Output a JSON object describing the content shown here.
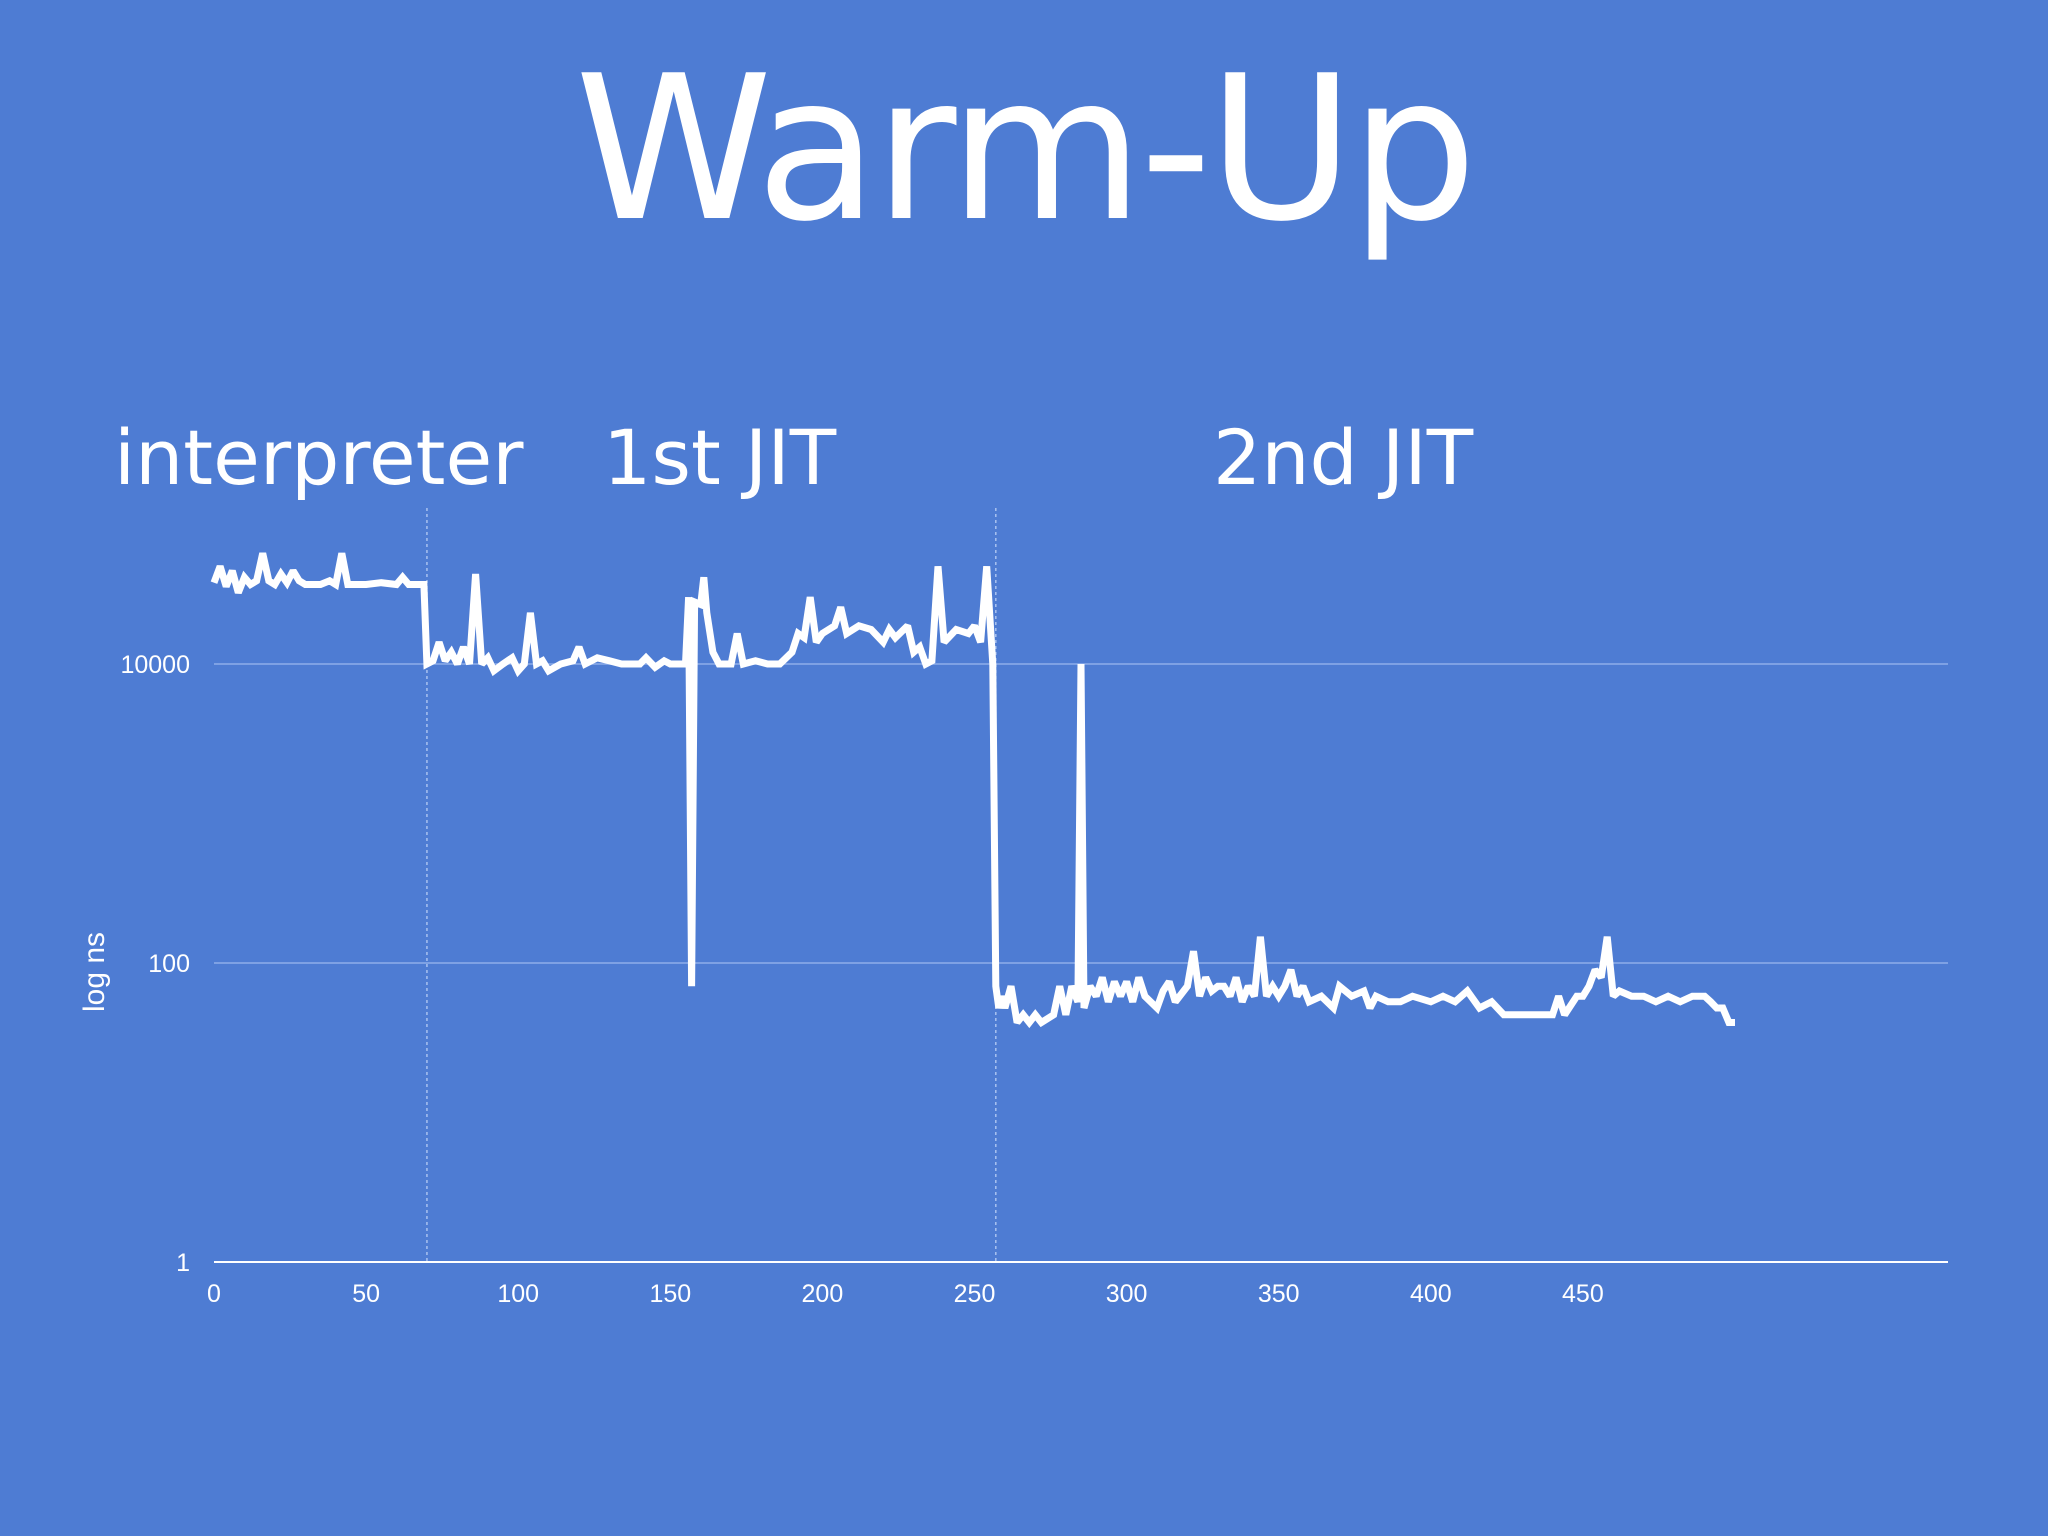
{
  "slide": {
    "title": "Warm-Up"
  },
  "colors": {
    "background": "#4e7cd3",
    "line": "#ffffff",
    "grid": "#8eadea"
  },
  "chart_data": {
    "type": "line",
    "title": "",
    "xlabel": "",
    "ylabel": "log ns",
    "yscale": "log",
    "ylim": [
      1,
      50000
    ],
    "xlim": [
      0,
      500
    ],
    "xticks": [
      0,
      50,
      100,
      150,
      200,
      250,
      300,
      350,
      400,
      450
    ],
    "yticks": [
      1,
      100,
      10000
    ],
    "grid": "horizontal",
    "phase_boundaries": [
      70,
      257
    ],
    "phases": [
      "interpreter",
      "1st JIT",
      "2nd JIT"
    ],
    "series": [
      {
        "points": [
          [
            0,
            35000
          ],
          [
            2,
            45000
          ],
          [
            4,
            33000
          ],
          [
            6,
            42000
          ],
          [
            8,
            30000
          ],
          [
            10,
            38000
          ],
          [
            12,
            34000
          ],
          [
            14,
            36000
          ],
          [
            16,
            55000
          ],
          [
            18,
            36000
          ],
          [
            20,
            34000
          ],
          [
            22,
            40000
          ],
          [
            24,
            35000
          ],
          [
            26,
            42000
          ],
          [
            28,
            36000
          ],
          [
            30,
            34000
          ],
          [
            35,
            34000
          ],
          [
            38,
            36000
          ],
          [
            40,
            34000
          ],
          [
            42,
            55000
          ],
          [
            44,
            34000
          ],
          [
            50,
            34000
          ],
          [
            55,
            35000
          ],
          [
            60,
            34000
          ],
          [
            62,
            38000
          ],
          [
            64,
            34000
          ],
          [
            68,
            34000
          ],
          [
            69,
            34000
          ],
          [
            70,
            10000
          ],
          [
            72,
            10500
          ],
          [
            74,
            14000
          ],
          [
            76,
            10500
          ],
          [
            78,
            12000
          ],
          [
            80,
            10000
          ],
          [
            82,
            13000
          ],
          [
            84,
            10000
          ],
          [
            86,
            40000
          ],
          [
            88,
            10000
          ],
          [
            90,
            11000
          ],
          [
            92,
            9000
          ],
          [
            95,
            10000
          ],
          [
            98,
            11000
          ],
          [
            100,
            9000
          ],
          [
            102,
            10000
          ],
          [
            104,
            22000
          ],
          [
            106,
            10000
          ],
          [
            108,
            10500
          ],
          [
            110,
            9000
          ],
          [
            114,
            10000
          ],
          [
            118,
            10500
          ],
          [
            120,
            13000
          ],
          [
            122,
            10000
          ],
          [
            126,
            11000
          ],
          [
            130,
            10500
          ],
          [
            134,
            10000
          ],
          [
            138,
            10000
          ],
          [
            140,
            10000
          ],
          [
            142,
            11000
          ],
          [
            145,
            9500
          ],
          [
            148,
            10500
          ],
          [
            150,
            10000
          ],
          [
            152,
            10000
          ],
          [
            155,
            10000
          ],
          [
            156,
            28000
          ],
          [
            157,
            70
          ],
          [
            158,
            26000
          ],
          [
            160,
            25000
          ],
          [
            161,
            38000
          ],
          [
            162,
            22000
          ],
          [
            164,
            12000
          ],
          [
            166,
            10000
          ],
          [
            170,
            10000
          ],
          [
            172,
            16000
          ],
          [
            174,
            10000
          ],
          [
            178,
            10500
          ],
          [
            182,
            10000
          ],
          [
            186,
            10000
          ],
          [
            190,
            12000
          ],
          [
            192,
            16000
          ],
          [
            194,
            15000
          ],
          [
            196,
            28000
          ],
          [
            198,
            14000
          ],
          [
            200,
            16000
          ],
          [
            204,
            18000
          ],
          [
            206,
            24000
          ],
          [
            208,
            16000
          ],
          [
            212,
            18000
          ],
          [
            216,
            17000
          ],
          [
            220,
            14000
          ],
          [
            222,
            17000
          ],
          [
            224,
            15000
          ],
          [
            228,
            18000
          ],
          [
            230,
            12000
          ],
          [
            232,
            13000
          ],
          [
            234,
            10000
          ],
          [
            236,
            10500
          ],
          [
            238,
            45000
          ],
          [
            240,
            14000
          ],
          [
            244,
            17000
          ],
          [
            248,
            16000
          ],
          [
            250,
            18000
          ],
          [
            252,
            14000
          ],
          [
            254,
            45000
          ],
          [
            256,
            10000
          ],
          [
            257,
            70
          ],
          [
            258,
            50
          ],
          [
            259,
            60
          ],
          [
            260,
            50
          ],
          [
            262,
            70
          ],
          [
            264,
            40
          ],
          [
            266,
            45
          ],
          [
            268,
            40
          ],
          [
            270,
            45
          ],
          [
            272,
            40
          ],
          [
            276,
            45
          ],
          [
            278,
            70
          ],
          [
            280,
            45
          ],
          [
            282,
            70
          ],
          [
            284,
            55
          ],
          [
            285,
            10000
          ],
          [
            286,
            50
          ],
          [
            288,
            70
          ],
          [
            290,
            60
          ],
          [
            292,
            80
          ],
          [
            294,
            55
          ],
          [
            296,
            75
          ],
          [
            298,
            60
          ],
          [
            300,
            75
          ],
          [
            302,
            55
          ],
          [
            304,
            80
          ],
          [
            306,
            60
          ],
          [
            310,
            50
          ],
          [
            312,
            65
          ],
          [
            314,
            75
          ],
          [
            316,
            55
          ],
          [
            320,
            70
          ],
          [
            322,
            120
          ],
          [
            324,
            60
          ],
          [
            326,
            80
          ],
          [
            328,
            65
          ],
          [
            330,
            70
          ],
          [
            332,
            70
          ],
          [
            334,
            60
          ],
          [
            336,
            80
          ],
          [
            338,
            55
          ],
          [
            340,
            70
          ],
          [
            342,
            60
          ],
          [
            344,
            150
          ],
          [
            346,
            60
          ],
          [
            348,
            70
          ],
          [
            350,
            60
          ],
          [
            352,
            70
          ],
          [
            354,
            90
          ],
          [
            356,
            60
          ],
          [
            358,
            70
          ],
          [
            360,
            55
          ],
          [
            364,
            60
          ],
          [
            368,
            50
          ],
          [
            370,
            70
          ],
          [
            374,
            60
          ],
          [
            378,
            65
          ],
          [
            380,
            50
          ],
          [
            382,
            60
          ],
          [
            386,
            55
          ],
          [
            390,
            55
          ],
          [
            394,
            60
          ],
          [
            400,
            55
          ],
          [
            404,
            60
          ],
          [
            408,
            55
          ],
          [
            412,
            65
          ],
          [
            416,
            50
          ],
          [
            420,
            55
          ],
          [
            424,
            45
          ],
          [
            428,
            45
          ],
          [
            432,
            45
          ],
          [
            436,
            45
          ],
          [
            440,
            45
          ],
          [
            442,
            60
          ],
          [
            444,
            45
          ],
          [
            448,
            60
          ],
          [
            450,
            60
          ],
          [
            452,
            70
          ],
          [
            454,
            90
          ],
          [
            456,
            80
          ],
          [
            458,
            150
          ],
          [
            460,
            60
          ],
          [
            462,
            65
          ],
          [
            466,
            60
          ],
          [
            470,
            60
          ],
          [
            474,
            55
          ],
          [
            478,
            60
          ],
          [
            482,
            55
          ],
          [
            486,
            60
          ],
          [
            490,
            60
          ],
          [
            492,
            55
          ],
          [
            494,
            50
          ],
          [
            496,
            50
          ],
          [
            498,
            40
          ],
          [
            500,
            40
          ]
        ]
      }
    ]
  }
}
